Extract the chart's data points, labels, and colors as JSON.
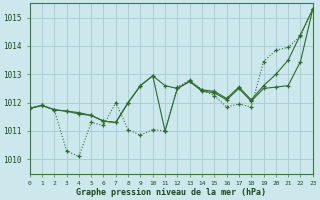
{
  "title": "Graphe pression niveau de la mer (hPa)",
  "background_color": "#cce8ec",
  "grid_color": "#aacfd4",
  "line_color": "#2d6a2d",
  "xlim": [
    0,
    23
  ],
  "ylim": [
    1009.5,
    1015.5
  ],
  "yticks": [
    1010,
    1011,
    1012,
    1013,
    1014,
    1015
  ],
  "x_labels": [
    "0",
    "1",
    "2",
    "3",
    "4",
    "5",
    "6",
    "7",
    "8",
    "9",
    "10",
    "11",
    "12",
    "13",
    "14",
    "15",
    "16",
    "17",
    "18",
    "19",
    "20",
    "21",
    "22",
    "23"
  ],
  "s1": [
    1011.8,
    1011.9,
    1011.75,
    1010.3,
    1010.1,
    1011.3,
    1011.2,
    1012.0,
    1011.05,
    1010.85,
    1011.05,
    1011.0,
    1012.55,
    1012.8,
    1012.45,
    1012.25,
    1011.85,
    1011.95,
    1011.85,
    1013.45,
    1013.85,
    1013.95,
    1014.35,
    1015.3
  ],
  "s2": [
    1011.8,
    1011.9,
    1011.75,
    1011.7,
    1011.6,
    1011.55,
    1011.35,
    1011.3,
    1012.0,
    1012.6,
    1012.95,
    1011.0,
    1012.5,
    1012.75,
    1012.4,
    1012.35,
    1012.1,
    1012.5,
    1012.05,
    1012.5,
    1012.55,
    1012.6,
    1013.45,
    1015.3
  ],
  "s3": [
    1011.8,
    1011.9,
    1011.75,
    1011.7,
    1011.65,
    1011.55,
    1011.35,
    1011.3,
    1012.0,
    1012.6,
    1012.95,
    1012.6,
    1012.5,
    1012.75,
    1012.45,
    1012.4,
    1012.15,
    1012.55,
    1012.1,
    1012.6,
    1013.0,
    1013.5,
    1014.4,
    1015.3
  ]
}
